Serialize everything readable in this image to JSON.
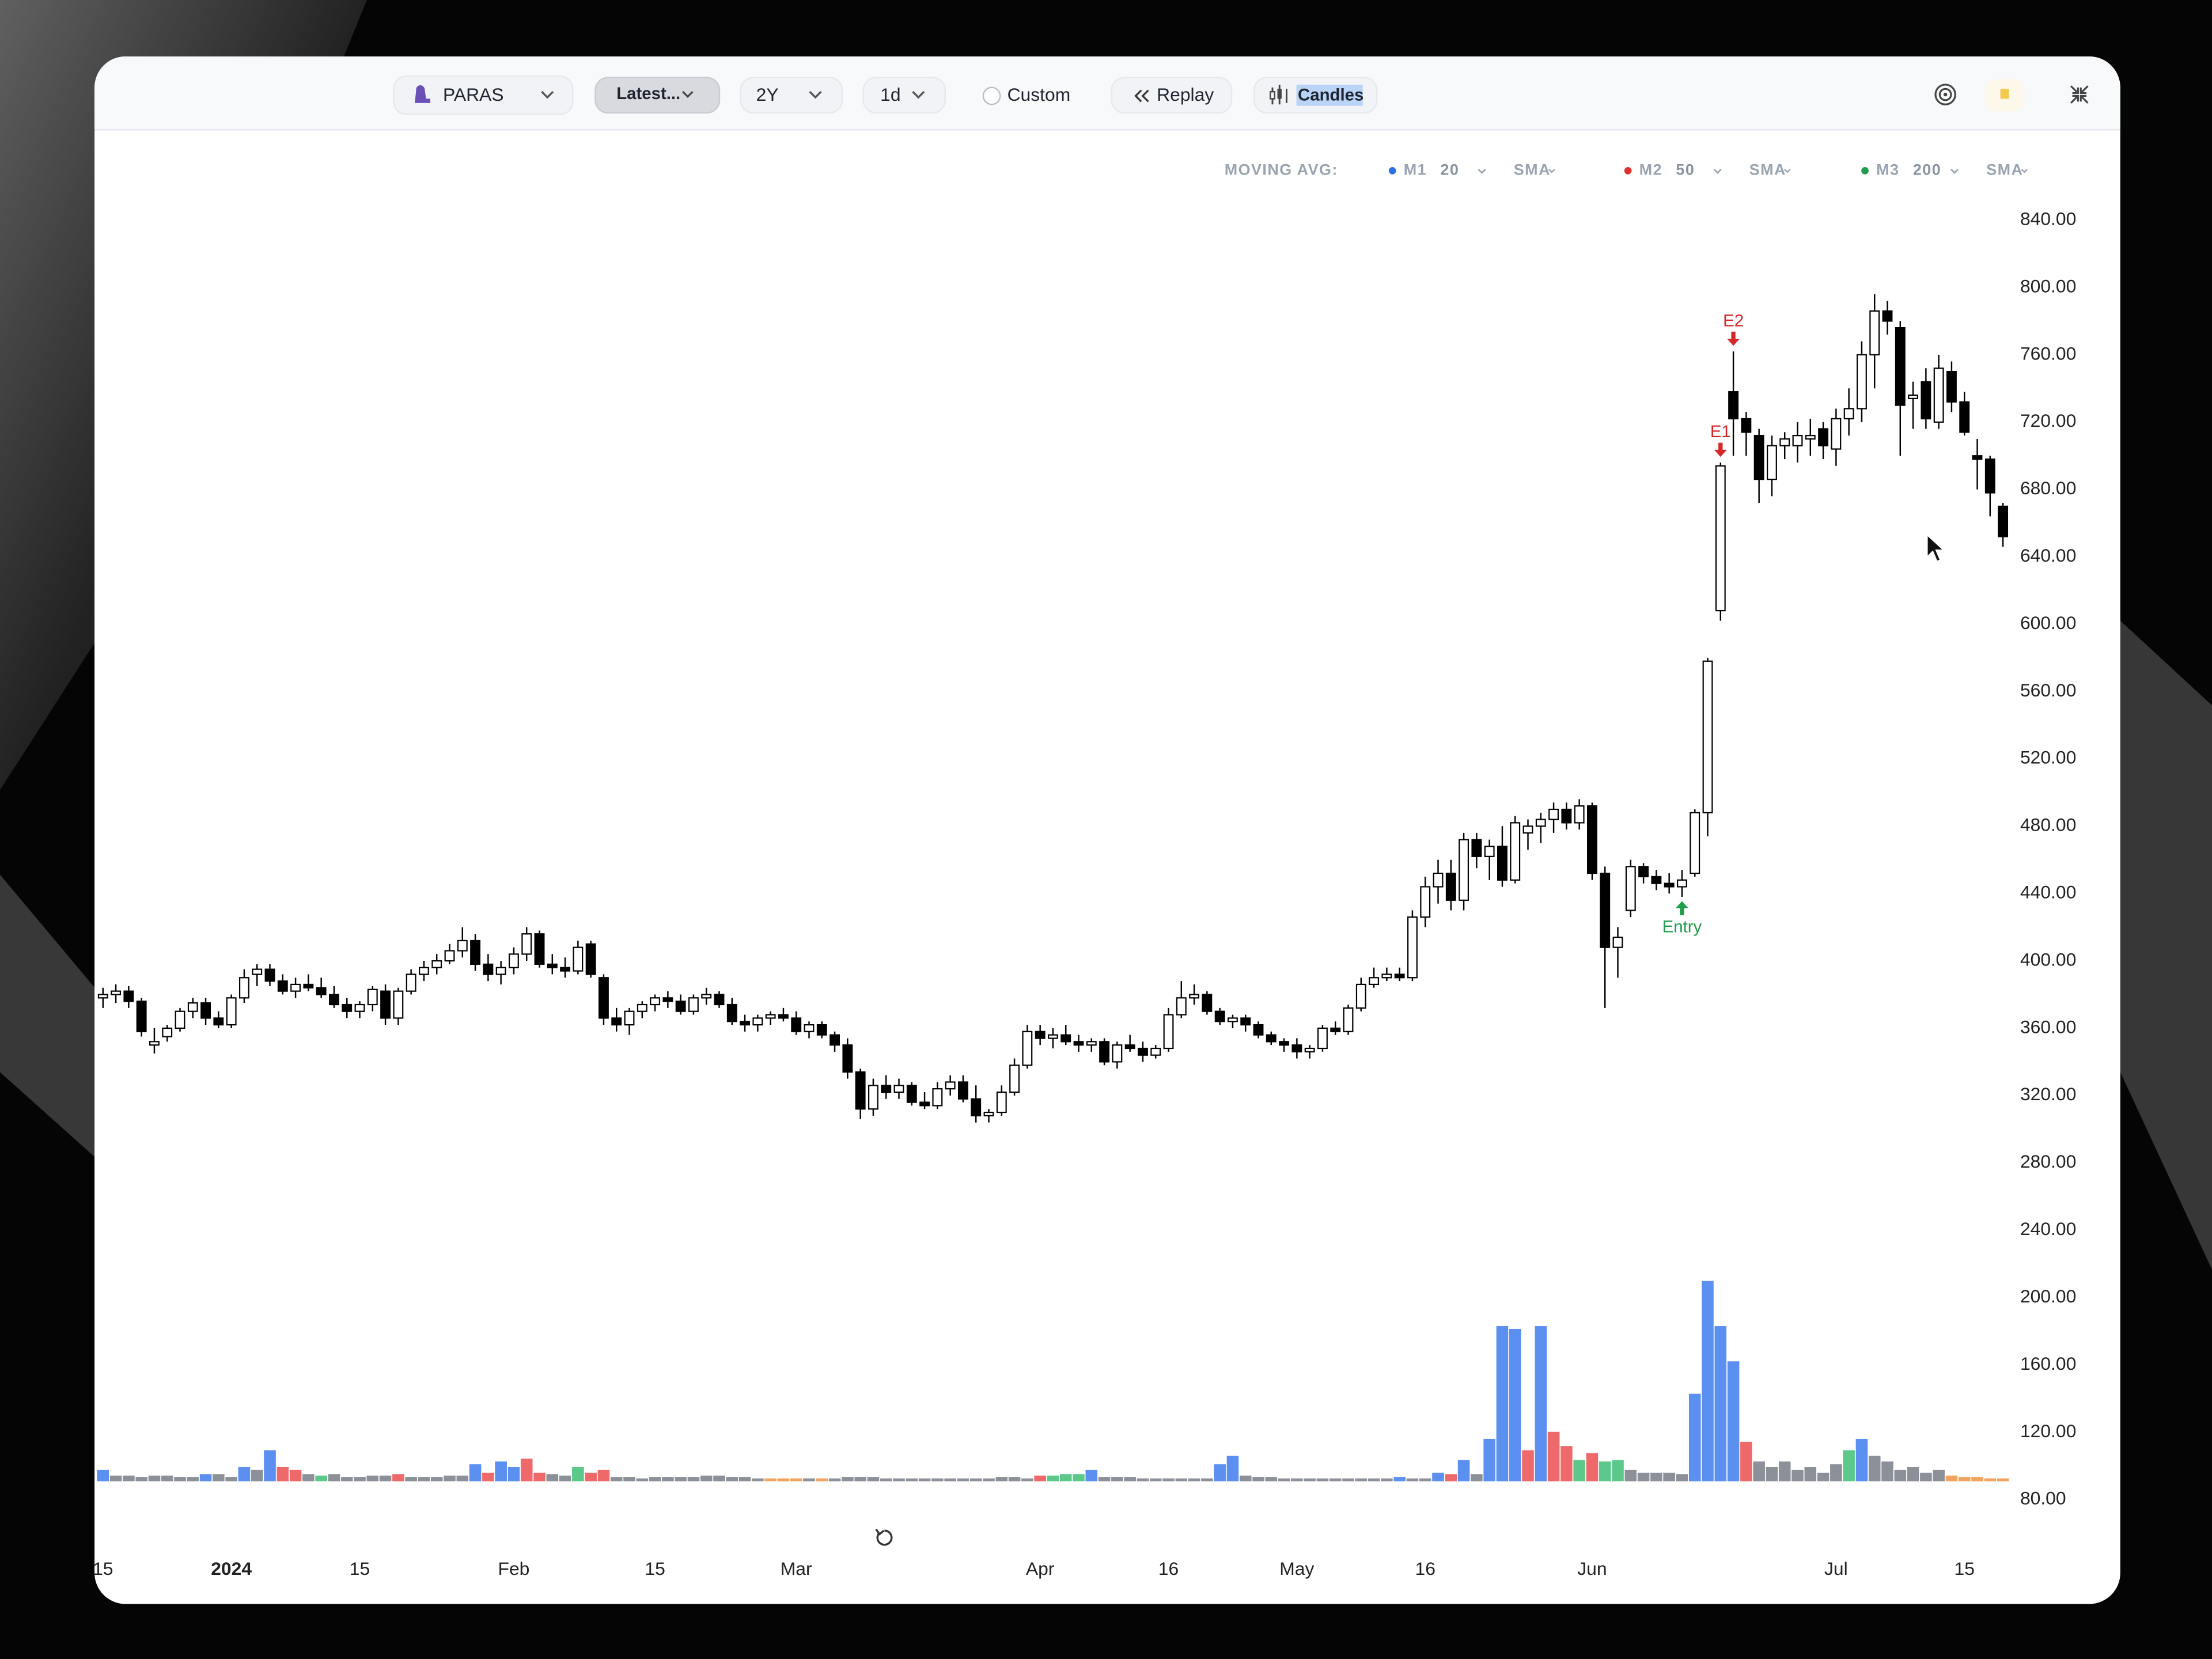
{
  "toolbar": {
    "symbol": "PARAS",
    "range_mode": "Latest...",
    "period": "2Y",
    "interval": "1d",
    "custom": "Custom",
    "replay": "Replay",
    "chart_style": "Candles"
  },
  "moving_avg": {
    "label": "MOVING AVG:",
    "items": [
      {
        "name": "M1",
        "color": "#2f6fe4",
        "length": 20,
        "kind": "SMA"
      },
      {
        "name": "M2",
        "color": "#e03131",
        "length": 50,
        "kind": "SMA"
      },
      {
        "name": "M3",
        "color": "#1f9d4c",
        "length": 200,
        "kind": "SMA"
      }
    ]
  },
  "chart_data": {
    "type": "candlestick",
    "up_color": "#ffffff",
    "down_color": "#000000",
    "wick_color": "#000000",
    "xlim": [
      -0.66,
      148.9
    ],
    "xticks": [
      {
        "value": 0,
        "label": "15"
      },
      {
        "value": 10,
        "label": "2024"
      },
      {
        "value": 20,
        "label": "15"
      },
      {
        "value": 32,
        "label": "Feb"
      },
      {
        "value": 43,
        "label": "15"
      },
      {
        "value": 54,
        "label": "Mar"
      },
      {
        "value": 73,
        "label": "Apr"
      },
      {
        "value": 83,
        "label": "16"
      },
      {
        "value": 93,
        "label": "May"
      },
      {
        "value": 103,
        "label": "16"
      },
      {
        "value": 116,
        "label": "Jun"
      },
      {
        "value": 135,
        "label": "Jul"
      },
      {
        "value": 145,
        "label": "15"
      }
    ],
    "ylim": [
      80,
      840
    ],
    "yticks": [
      {
        "value": 80,
        "label": "80.00"
      },
      {
        "value": 120,
        "label": "120.00"
      },
      {
        "value": 160,
        "label": "160.00"
      },
      {
        "value": 200,
        "label": "200.00"
      },
      {
        "value": 240,
        "label": "240.00"
      },
      {
        "value": 280,
        "label": "280.00"
      },
      {
        "value": 320,
        "label": "320.00"
      },
      {
        "value": 360,
        "label": "360.00"
      },
      {
        "value": 400,
        "label": "400.00"
      },
      {
        "value": 440,
        "label": "440.00"
      },
      {
        "value": 480,
        "label": "480.00"
      },
      {
        "value": 520,
        "label": "520.00"
      },
      {
        "value": 560,
        "label": "560.00"
      },
      {
        "value": 600,
        "label": "600.00"
      },
      {
        "value": 640,
        "label": "640.00"
      },
      {
        "value": 680,
        "label": "680.00"
      },
      {
        "value": 720,
        "label": "720.00"
      },
      {
        "value": 760,
        "label": "760.00"
      },
      {
        "value": 800,
        "label": "800.00"
      },
      {
        "value": 840,
        "label": "840.00"
      }
    ],
    "ohlc": [
      [
        378,
        384,
        372,
        380
      ],
      [
        380,
        386,
        375,
        382
      ],
      [
        382,
        385,
        372,
        376
      ],
      [
        376,
        378,
        355,
        358
      ],
      [
        350,
        360,
        345,
        352
      ],
      [
        355,
        362,
        352,
        360
      ],
      [
        360,
        372,
        358,
        370
      ],
      [
        370,
        378,
        366,
        375
      ],
      [
        375,
        378,
        362,
        366
      ],
      [
        366,
        370,
        360,
        362
      ],
      [
        362,
        380,
        360,
        378
      ],
      [
        378,
        395,
        375,
        390
      ],
      [
        392,
        398,
        385,
        395
      ],
      [
        395,
        398,
        385,
        388
      ],
      [
        388,
        392,
        380,
        382
      ],
      [
        382,
        390,
        378,
        386
      ],
      [
        386,
        392,
        382,
        384
      ],
      [
        384,
        390,
        378,
        380
      ],
      [
        380,
        385,
        372,
        374
      ],
      [
        374,
        378,
        366,
        370
      ],
      [
        370,
        376,
        366,
        374
      ],
      [
        374,
        385,
        370,
        383
      ],
      [
        382,
        386,
        362,
        366
      ],
      [
        366,
        384,
        362,
        382
      ],
      [
        382,
        395,
        380,
        392
      ],
      [
        392,
        400,
        388,
        396
      ],
      [
        396,
        404,
        392,
        400
      ],
      [
        400,
        410,
        398,
        406
      ],
      [
        406,
        420,
        402,
        412
      ],
      [
        412,
        416,
        394,
        398
      ],
      [
        398,
        404,
        388,
        392
      ],
      [
        392,
        400,
        386,
        396
      ],
      [
        396,
        408,
        392,
        404
      ],
      [
        404,
        420,
        400,
        416
      ],
      [
        416,
        418,
        396,
        398
      ],
      [
        398,
        404,
        392,
        396
      ],
      [
        396,
        402,
        390,
        394
      ],
      [
        394,
        412,
        392,
        408
      ],
      [
        410,
        412,
        390,
        392
      ],
      [
        390,
        392,
        362,
        366
      ],
      [
        366,
        372,
        358,
        362
      ],
      [
        362,
        372,
        356,
        370
      ],
      [
        370,
        376,
        366,
        374
      ],
      [
        374,
        380,
        370,
        378
      ],
      [
        378,
        382,
        372,
        376
      ],
      [
        376,
        380,
        368,
        370
      ],
      [
        370,
        380,
        368,
        378
      ],
      [
        378,
        384,
        374,
        380
      ],
      [
        380,
        382,
        372,
        374
      ],
      [
        374,
        378,
        362,
        364
      ],
      [
        364,
        368,
        358,
        362
      ],
      [
        362,
        368,
        358,
        366
      ],
      [
        366,
        370,
        362,
        368
      ],
      [
        368,
        372,
        364,
        366
      ],
      [
        366,
        370,
        356,
        358
      ],
      [
        358,
        364,
        354,
        362
      ],
      [
        362,
        364,
        354,
        356
      ],
      [
        356,
        358,
        346,
        350
      ],
      [
        350,
        354,
        330,
        334
      ],
      [
        334,
        336,
        306,
        312
      ],
      [
        312,
        330,
        308,
        326
      ],
      [
        326,
        332,
        318,
        322
      ],
      [
        322,
        330,
        318,
        326
      ],
      [
        326,
        328,
        314,
        316
      ],
      [
        316,
        322,
        312,
        314
      ],
      [
        314,
        328,
        312,
        324
      ],
      [
        324,
        332,
        320,
        328
      ],
      [
        328,
        332,
        316,
        318
      ],
      [
        318,
        326,
        304,
        308
      ],
      [
        308,
        312,
        304,
        310
      ],
      [
        310,
        326,
        308,
        322
      ],
      [
        322,
        342,
        320,
        338
      ],
      [
        338,
        362,
        336,
        358
      ],
      [
        358,
        362,
        350,
        354
      ],
      [
        354,
        360,
        348,
        356
      ],
      [
        356,
        362,
        350,
        352
      ],
      [
        352,
        356,
        346,
        350
      ],
      [
        350,
        354,
        346,
        352
      ],
      [
        352,
        354,
        338,
        340
      ],
      [
        340,
        352,
        336,
        350
      ],
      [
        350,
        356,
        346,
        348
      ],
      [
        348,
        352,
        340,
        344
      ],
      [
        344,
        350,
        342,
        348
      ],
      [
        348,
        372,
        346,
        368
      ],
      [
        368,
        388,
        366,
        378
      ],
      [
        378,
        386,
        374,
        380
      ],
      [
        380,
        382,
        368,
        370
      ],
      [
        370,
        372,
        362,
        364
      ],
      [
        364,
        368,
        360,
        366
      ],
      [
        366,
        368,
        358,
        362
      ],
      [
        362,
        364,
        354,
        356
      ],
      [
        356,
        358,
        350,
        352
      ],
      [
        352,
        354,
        346,
        350
      ],
      [
        350,
        354,
        342,
        346
      ],
      [
        346,
        350,
        342,
        348
      ],
      [
        348,
        362,
        346,
        360
      ],
      [
        360,
        364,
        356,
        358
      ],
      [
        358,
        374,
        356,
        372
      ],
      [
        372,
        390,
        370,
        386
      ],
      [
        386,
        396,
        384,
        390
      ],
      [
        390,
        396,
        388,
        392
      ],
      [
        392,
        396,
        388,
        390
      ],
      [
        390,
        430,
        388,
        426
      ],
      [
        426,
        450,
        420,
        444
      ],
      [
        444,
        460,
        434,
        452
      ],
      [
        452,
        460,
        430,
        436
      ],
      [
        436,
        476,
        430,
        472
      ],
      [
        472,
        476,
        455,
        462
      ],
      [
        462,
        472,
        448,
        468
      ],
      [
        468,
        480,
        444,
        448
      ],
      [
        448,
        486,
        446,
        482
      ],
      [
        476,
        484,
        466,
        480
      ],
      [
        480,
        488,
        470,
        484
      ],
      [
        484,
        494,
        476,
        490
      ],
      [
        490,
        494,
        478,
        482
      ],
      [
        482,
        496,
        478,
        492
      ],
      [
        492,
        494,
        448,
        452
      ],
      [
        452,
        456,
        372,
        408
      ],
      [
        408,
        420,
        390,
        414
      ],
      [
        430,
        460,
        426,
        456
      ],
      [
        456,
        458,
        446,
        450
      ],
      [
        450,
        454,
        442,
        446
      ],
      [
        446,
        452,
        440,
        444
      ],
      [
        444,
        454,
        438,
        448
      ],
      [
        452,
        490,
        450,
        488
      ],
      [
        488,
        580,
        474,
        578
      ],
      [
        608,
        696,
        602,
        694
      ],
      [
        738,
        762,
        700,
        722
      ],
      [
        722,
        726,
        700,
        714
      ],
      [
        712,
        716,
        672,
        686
      ],
      [
        686,
        712,
        676,
        706
      ],
      [
        706,
        714,
        698,
        710
      ],
      [
        706,
        720,
        696,
        712
      ],
      [
        710,
        722,
        700,
        712
      ],
      [
        716,
        720,
        698,
        706
      ],
      [
        704,
        728,
        694,
        722
      ],
      [
        722,
        740,
        712,
        728
      ],
      [
        728,
        768,
        720,
        760
      ],
      [
        760,
        796,
        740,
        786
      ],
      [
        786,
        792,
        772,
        780
      ],
      [
        776,
        780,
        700,
        730
      ],
      [
        734,
        744,
        716,
        736
      ],
      [
        744,
        752,
        716,
        722
      ],
      [
        720,
        760,
        716,
        752
      ],
      [
        750,
        756,
        726,
        732
      ],
      [
        732,
        738,
        712,
        714
      ],
      [
        700,
        710,
        680,
        698
      ],
      [
        698,
        700,
        664,
        678
      ],
      [
        670,
        672,
        646,
        652
      ]
    ],
    "volume": {
      "ylim": [
        0,
        150
      ],
      "values": [
        8,
        4,
        4,
        3,
        4,
        4,
        3,
        3,
        5,
        5,
        3,
        10,
        8,
        22,
        10,
        8,
        5,
        4,
        5,
        3,
        3,
        4,
        4,
        5,
        3,
        3,
        3,
        4,
        4,
        12,
        6,
        14,
        10,
        16,
        6,
        5,
        4,
        10,
        6,
        8,
        3,
        3,
        2,
        3,
        3,
        3,
        3,
        4,
        4,
        3,
        3,
        2,
        2,
        2,
        2,
        2,
        2,
        2,
        3,
        3,
        3,
        2,
        2,
        2,
        2,
        2,
        2,
        2,
        2,
        2,
        3,
        3,
        2,
        4,
        4,
        5,
        5,
        8,
        3,
        3,
        3,
        2,
        2,
        2,
        2,
        2,
        2,
        12,
        18,
        4,
        3,
        3,
        2,
        2,
        2,
        2,
        2,
        2,
        2,
        2,
        2,
        3,
        2,
        2,
        6,
        5,
        15,
        5,
        30,
        110,
        108,
        22,
        110,
        35,
        25,
        15,
        20,
        14,
        15,
        8,
        6,
        6,
        6,
        5,
        62,
        142,
        110,
        85,
        28,
        14,
        10,
        14,
        8,
        10,
        6,
        12,
        22,
        30,
        18,
        14,
        8,
        10,
        6,
        8,
        4,
        3,
        3,
        2,
        2
      ],
      "keys": [
        "b",
        "g",
        "g",
        "g",
        "g",
        "g",
        "g",
        "g",
        "b",
        "g",
        "g",
        "b",
        "g",
        "b",
        "r",
        "r",
        "g",
        "n",
        "g",
        "g",
        "g",
        "g",
        "g",
        "r",
        "g",
        "g",
        "g",
        "g",
        "g",
        "b",
        "r",
        "b",
        "b",
        "r",
        "r",
        "g",
        "g",
        "n",
        "r",
        "r",
        "g",
        "g",
        "g",
        "g",
        "g",
        "g",
        "g",
        "g",
        "g",
        "g",
        "g",
        "g",
        "o",
        "o",
        "o",
        "g",
        "o",
        "g",
        "g",
        "g",
        "g",
        "g",
        "g",
        "g",
        "g",
        "g",
        "g",
        "g",
        "g",
        "g",
        "g",
        "g",
        "g",
        "r",
        "n",
        "n",
        "n",
        "b",
        "g",
        "g",
        "g",
        "g",
        "g",
        "g",
        "g",
        "g",
        "g",
        "b",
        "b",
        "g",
        "g",
        "g",
        "g",
        "g",
        "g",
        "g",
        "g",
        "g",
        "g",
        "g",
        "g",
        "b",
        "g",
        "g",
        "b",
        "r",
        "b",
        "g",
        "b",
        "b",
        "b",
        "r",
        "b",
        "r",
        "r",
        "n",
        "r",
        "n",
        "n",
        "g",
        "g",
        "g",
        "g",
        "g",
        "b",
        "b",
        "b",
        "b",
        "r",
        "g",
        "g",
        "g",
        "g",
        "g",
        "g",
        "g",
        "n",
        "b",
        "g",
        "g",
        "g",
        "g",
        "g",
        "g",
        "o",
        "o",
        "o",
        "o",
        "o"
      ],
      "palette": {
        "g": "#8c9098",
        "b": "#5b8ff0",
        "r": "#ee6a6a",
        "n": "#5cc98a",
        "o": "#f2a35e"
      }
    },
    "annotations": [
      {
        "label": "E1",
        "index": 126,
        "color": "#d62828",
        "position": "above"
      },
      {
        "label": "E2",
        "index": 127,
        "color": "#d62828",
        "position": "above"
      },
      {
        "label": "Entry",
        "index": 123,
        "color": "#1f9d4c",
        "position": "below"
      }
    ]
  }
}
